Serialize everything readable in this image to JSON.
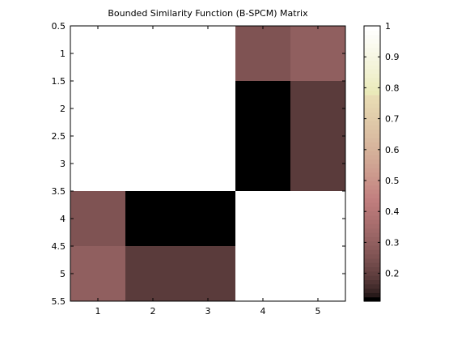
{
  "chart_data": {
    "type": "heatmap",
    "title": "Bounded Similarity Function (B-SPCM) Matrix",
    "xlabel": "",
    "ylabel": "",
    "x_ticks": [
      "1",
      "2",
      "3",
      "4",
      "5"
    ],
    "y_ticks": [
      "0.5",
      "1",
      "1.5",
      "2",
      "2.5",
      "3",
      "3.5",
      "4",
      "4.5",
      "5",
      "5.5"
    ],
    "colorbar_ticks": [
      "0.2",
      "0.3",
      "0.4",
      "0.5",
      "0.6",
      "0.7",
      "0.8",
      "0.9",
      "1"
    ],
    "colorbar_ticks_values": [
      0.2,
      0.3,
      0.4,
      0.5,
      0.6,
      0.7,
      0.8,
      0.9,
      1.0
    ],
    "clim": [
      0.11,
      1.0
    ],
    "colormap": "pink",
    "grid": false,
    "colorbar_position": "right",
    "matrix": [
      [
        1.0,
        1.0,
        1.0,
        0.25,
        0.3
      ],
      [
        1.0,
        1.0,
        1.0,
        0.11,
        0.18
      ],
      [
        1.0,
        1.0,
        1.0,
        0.11,
        0.18
      ],
      [
        0.25,
        0.11,
        0.11,
        1.0,
        1.0
      ],
      [
        0.3,
        0.18,
        0.18,
        1.0,
        1.0
      ]
    ]
  }
}
